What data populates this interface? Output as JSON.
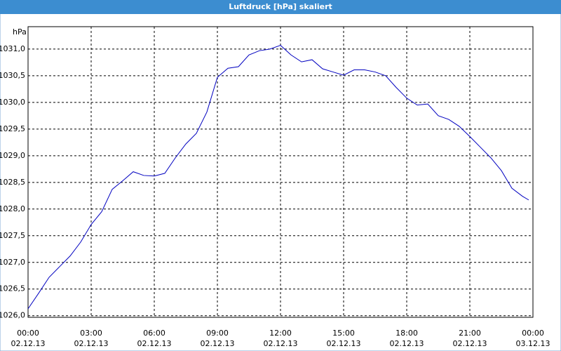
{
  "chart_data": {
    "type": "line",
    "title": "Luftdruck [hPa] skaliert",
    "ylabel": "hPa",
    "x": [
      0,
      0.5,
      1,
      1.5,
      2,
      2.5,
      3,
      3.5,
      4,
      4.5,
      5,
      5.5,
      6,
      6.5,
      7,
      7.5,
      8,
      8.5,
      9,
      9.5,
      10,
      10.5,
      11,
      11.5,
      12,
      12.5,
      13,
      13.5,
      14,
      14.5,
      15,
      15.5,
      16,
      16.5,
      17,
      17.5,
      18,
      18.5,
      19,
      19.5,
      20,
      20.5,
      21,
      21.5,
      22,
      22.5,
      23,
      23.5,
      23.8
    ],
    "series": [
      {
        "name": "Luftdruck",
        "color": "#0000c0",
        "values": [
          1026.13,
          1026.42,
          1026.72,
          1026.92,
          1027.12,
          1027.38,
          1027.71,
          1027.95,
          1028.37,
          1028.53,
          1028.7,
          1028.63,
          1028.62,
          1028.67,
          1028.96,
          1029.22,
          1029.42,
          1029.82,
          1030.47,
          1030.64,
          1030.67,
          1030.89,
          1030.97,
          1031.0,
          1031.07,
          1030.89,
          1030.76,
          1030.8,
          1030.63,
          1030.57,
          1030.51,
          1030.61,
          1030.61,
          1030.57,
          1030.5,
          1030.28,
          1030.08,
          1029.95,
          1029.97,
          1029.75,
          1029.68,
          1029.55,
          1029.36,
          1029.16,
          1028.96,
          1028.72,
          1028.39,
          1028.24,
          1028.17
        ]
      }
    ],
    "xlim": [
      0,
      24
    ],
    "xticks": [
      {
        "value": 0,
        "label": "00:00"
      },
      {
        "value": 3,
        "label": "03:00"
      },
      {
        "value": 6,
        "label": "06:00"
      },
      {
        "value": 9,
        "label": "09:00"
      },
      {
        "value": 12,
        "label": "12:00"
      },
      {
        "value": 15,
        "label": "15:00"
      },
      {
        "value": 18,
        "label": "18:00"
      },
      {
        "value": 21,
        "label": "21:00"
      },
      {
        "value": 24,
        "label": "00:00"
      }
    ],
    "xtick_dates": [
      "02.12.13",
      "02.12.13",
      "02.12.13",
      "02.12.13",
      "02.12.13",
      "02.12.13",
      "02.12.13",
      "02.12.13",
      "03.12.13"
    ],
    "ylim": [
      1025.97,
      1031.42
    ],
    "yticks": [
      {
        "value": 1026,
        "label": "1026,0"
      },
      {
        "value": 1026.5,
        "label": "1026,5"
      },
      {
        "value": 1027,
        "label": "1027,0"
      },
      {
        "value": 1027.5,
        "label": "1027,5"
      },
      {
        "value": 1028,
        "label": "1028,0"
      },
      {
        "value": 1028.5,
        "label": "1028,5"
      },
      {
        "value": 1029,
        "label": "1029,0"
      },
      {
        "value": 1029.5,
        "label": "1029,5"
      },
      {
        "value": 1030,
        "label": "1030,0"
      },
      {
        "value": 1030.5,
        "label": "1030,5"
      },
      {
        "value": 1031,
        "label": "1031,0"
      }
    ],
    "grid": true
  }
}
